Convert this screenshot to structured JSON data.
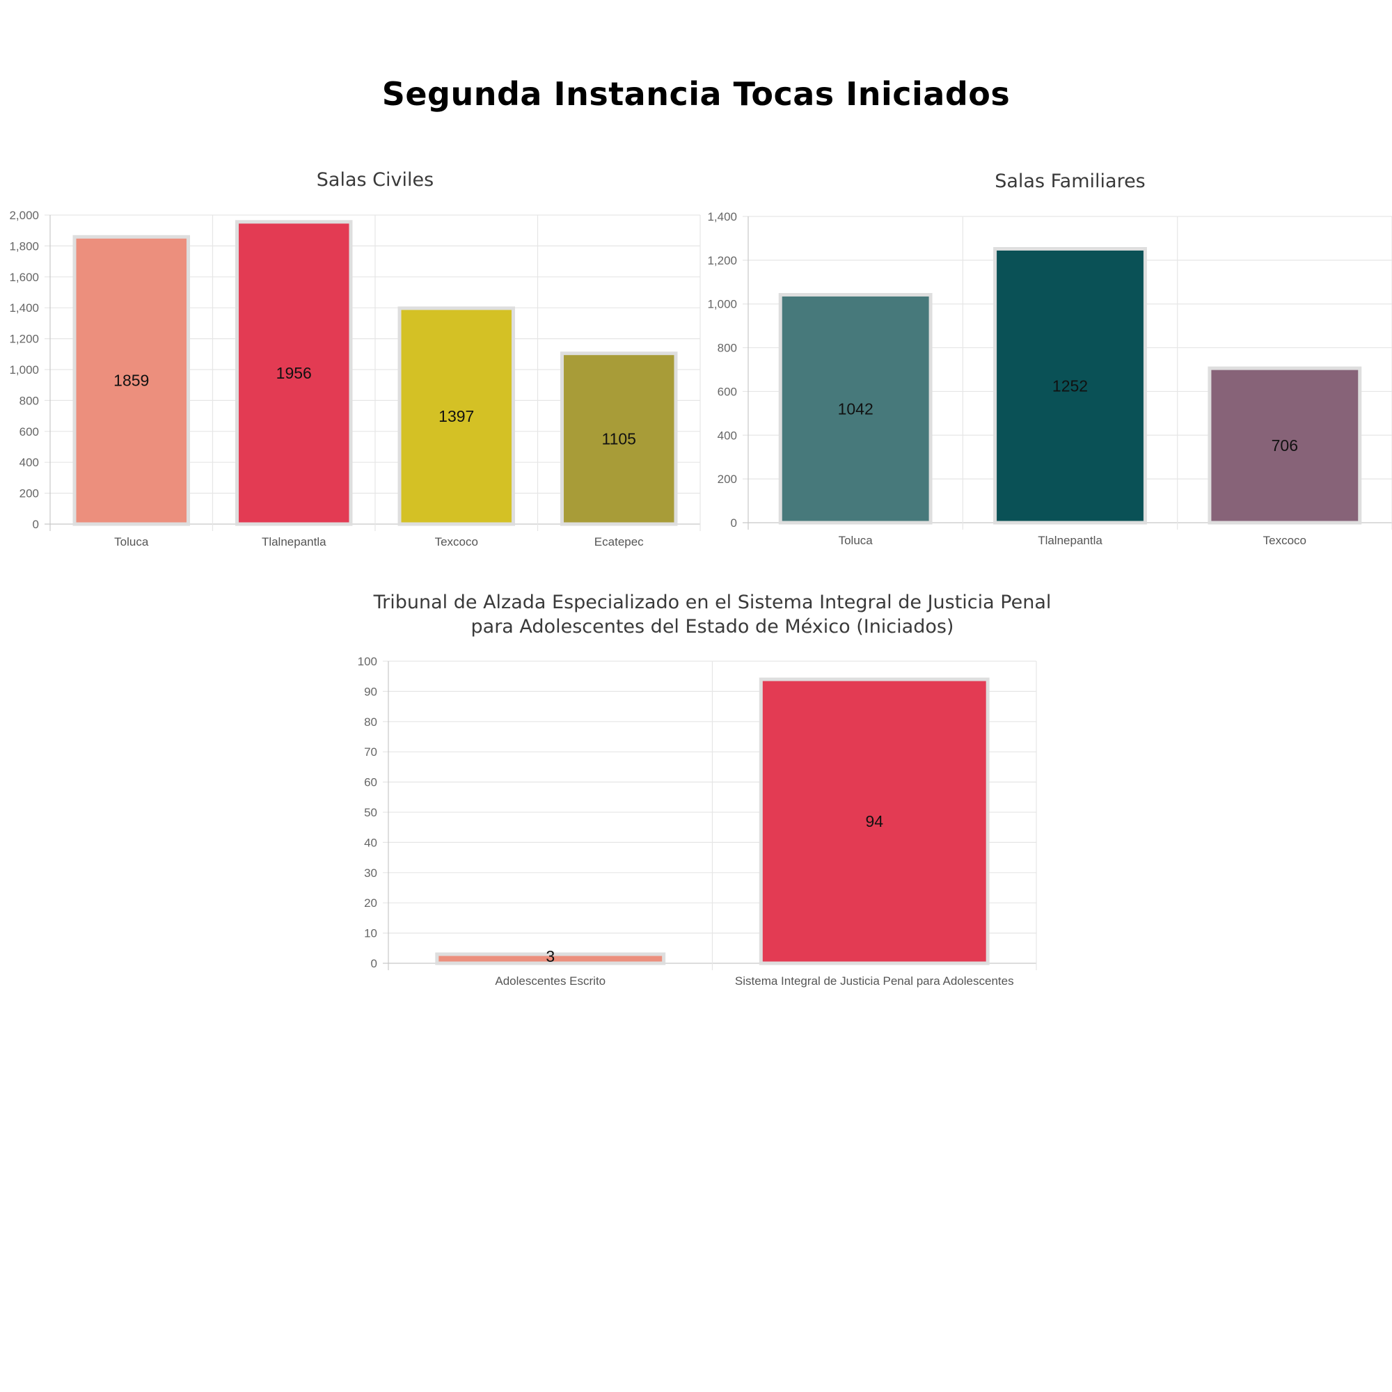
{
  "title": "Segunda Instancia Tocas Iniciados",
  "chart_data": [
    {
      "type": "bar",
      "title": [
        "Salas Civiles"
      ],
      "categories": [
        "Toluca",
        "Tlalnepantla",
        "Texcoco",
        "Ecatepec"
      ],
      "values": [
        1859,
        1956,
        1397,
        1105
      ],
      "data_labels": [
        "1859",
        "1956",
        "1397",
        "1105"
      ],
      "colors": [
        "#ec8f7d",
        "#e33b53",
        "#d4c125",
        "#a89c38"
      ],
      "ylim": [
        0,
        2000
      ],
      "yticks": [
        0,
        200,
        400,
        600,
        800,
        1000,
        1200,
        1400,
        1600,
        1800,
        2000
      ],
      "ytick_labels": [
        "0",
        "200",
        "400",
        "600",
        "800",
        "1,000",
        "1,200",
        "1,400",
        "1,600",
        "1,800",
        "2,000"
      ],
      "grid": true
    },
    {
      "type": "bar",
      "title": [
        "Salas Familiares"
      ],
      "categories": [
        "Toluca",
        "Tlalnepantla",
        "Texcoco"
      ],
      "values": [
        1042,
        1252,
        706
      ],
      "data_labels": [
        "1042",
        "1252",
        "706"
      ],
      "colors": [
        "#47797b",
        "#0a5156",
        "#876378"
      ],
      "ylim": [
        0,
        1400
      ],
      "yticks": [
        0,
        200,
        400,
        600,
        800,
        1000,
        1200,
        1400
      ],
      "ytick_labels": [
        "0",
        "200",
        "400",
        "600",
        "800",
        "1,000",
        "1,200",
        "1,400"
      ],
      "grid": true
    },
    {
      "type": "bar",
      "title": [
        "Tribunal de Alzada Especializado en el Sistema Integral de Justicia Penal",
        "para Adolescentes del Estado de México (Iniciados)"
      ],
      "categories": [
        "Adolescentes Escrito",
        "Sistema Integral de Justicia Penal para Adolescentes"
      ],
      "values": [
        3,
        94
      ],
      "data_labels": [
        "3",
        "94"
      ],
      "colors": [
        "#ec8f7d",
        "#e33b53"
      ],
      "ylim": [
        0,
        100
      ],
      "yticks": [
        0,
        10,
        20,
        30,
        40,
        50,
        60,
        70,
        80,
        90,
        100
      ],
      "ytick_labels": [
        "0",
        "10",
        "20",
        "30",
        "40",
        "50",
        "60",
        "70",
        "80",
        "90",
        "100"
      ],
      "grid": true
    }
  ]
}
